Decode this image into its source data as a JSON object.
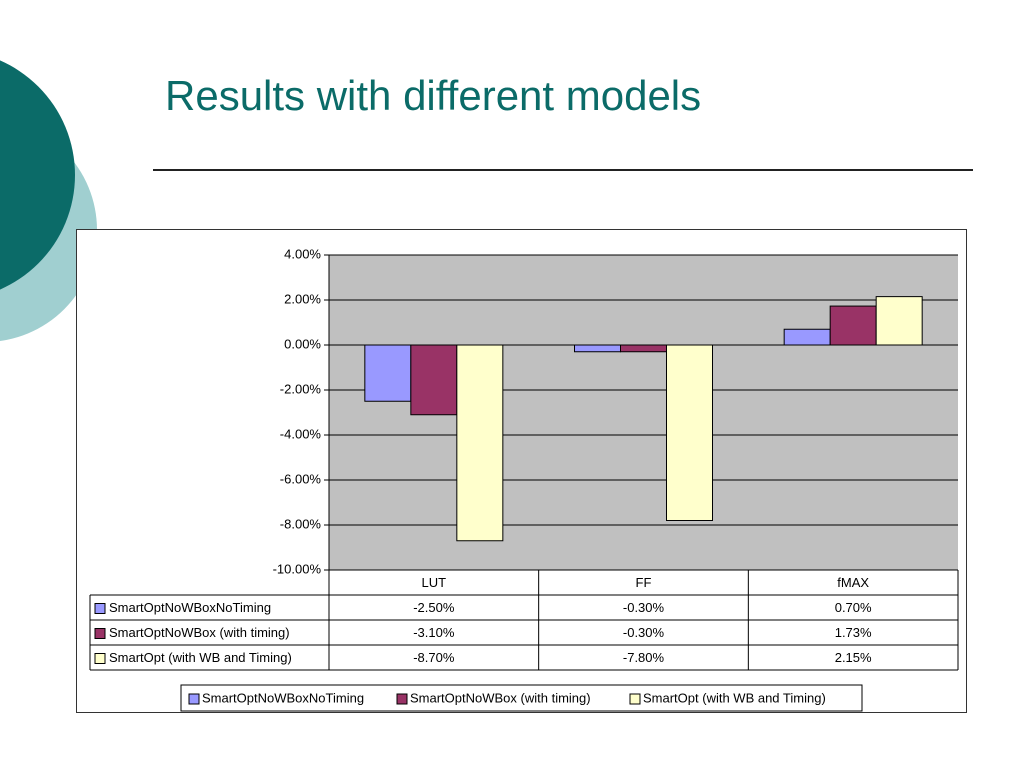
{
  "slide": {
    "title": "Results with different models",
    "theme_colors": {
      "dark_teal": "#0b6b68",
      "light_teal": "#a0cfd0",
      "title": "#0b6b68"
    }
  },
  "chart_data": {
    "type": "bar",
    "categories": [
      "LUT",
      "FF",
      "fMAX"
    ],
    "series": [
      {
        "name": "SmartOptNoWBoxNoTiming",
        "values": [
          -2.5,
          -0.3,
          0.7
        ],
        "color": "#9999ff",
        "labels": [
          "-2.50%",
          "-0.30%",
          "0.70%"
        ]
      },
      {
        "name": "SmartOptNoWBox (with timing)",
        "values": [
          -3.1,
          -0.3,
          1.73
        ],
        "color": "#993366",
        "labels": [
          "-3.10%",
          "-0.30%",
          "1.73%"
        ]
      },
      {
        "name": "SmartOpt (with WB and Timing)",
        "values": [
          -8.7,
          -7.8,
          2.15
        ],
        "color": "#ffffcc",
        "labels": [
          "-8.70%",
          "-7.80%",
          "2.15%"
        ]
      }
    ],
    "y_ticks": [
      "4.00%",
      "2.00%",
      "0.00%",
      "-2.00%",
      "-4.00%",
      "-6.00%",
      "-8.00%",
      "-10.00%"
    ],
    "ylim": [
      -10,
      4
    ],
    "ytick_step": 2,
    "grid": true,
    "plot_background": "#c0c0c0",
    "legend_position": "bottom",
    "data_table": true
  }
}
